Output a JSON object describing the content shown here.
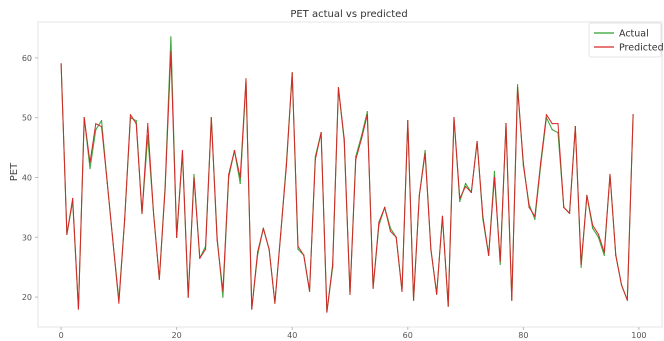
{
  "chart_data": {
    "type": "line",
    "title": "PET actual vs predicted",
    "xlabel": "",
    "ylabel": "PET",
    "xlim": [
      -4,
      104
    ],
    "ylim": [
      15,
      66
    ],
    "xticks": [
      0,
      20,
      40,
      60,
      80,
      100
    ],
    "yticks": [
      20,
      30,
      40,
      50,
      60
    ],
    "grid": false,
    "legend": "top-right",
    "x": [
      0,
      1,
      2,
      3,
      4,
      5,
      6,
      7,
      8,
      9,
      10,
      11,
      12,
      13,
      14,
      15,
      16,
      17,
      18,
      19,
      20,
      21,
      22,
      23,
      24,
      25,
      26,
      27,
      28,
      29,
      30,
      31,
      32,
      33,
      34,
      35,
      36,
      37,
      38,
      39,
      40,
      41,
      42,
      43,
      44,
      45,
      46,
      47,
      48,
      49,
      50,
      51,
      52,
      53,
      54,
      55,
      56,
      57,
      58,
      59,
      60,
      61,
      62,
      63,
      64,
      65,
      66,
      67,
      68,
      69,
      70,
      71,
      72,
      73,
      74,
      75,
      76,
      77,
      78,
      79,
      80,
      81,
      82,
      83,
      84,
      85,
      86,
      87,
      88,
      89,
      90,
      91,
      92,
      93,
      94,
      95,
      96,
      97,
      98,
      99
    ],
    "series": [
      {
        "name": "Actual",
        "color": "#2ca02c",
        "values": [
          59,
          30.5,
          36,
          18,
          50,
          41.5,
          48,
          49.5,
          39,
          29,
          19.5,
          33,
          50,
          49.5,
          34,
          47,
          34,
          23,
          38.5,
          63.5,
          30,
          44,
          20,
          40.5,
          26.5,
          28.5,
          50,
          30,
          20,
          40,
          44.5,
          39,
          56,
          18,
          27,
          31.5,
          28,
          19,
          30.5,
          42.5,
          57.5,
          28,
          27,
          21,
          43.5,
          47.5,
          17.5,
          25,
          55,
          46,
          20.5,
          43.5,
          47,
          51,
          21.5,
          32,
          35,
          31.5,
          30,
          21,
          49.5,
          19.5,
          37,
          44.5,
          28,
          20.5,
          33.5,
          18.5,
          50,
          36,
          39,
          37.5,
          46,
          33,
          27,
          41,
          25.5,
          49,
          19.5,
          55.5,
          42,
          35.5,
          33,
          42,
          50,
          48,
          47.5,
          35,
          34,
          48.5,
          25,
          37,
          31.5,
          30,
          27,
          40.5,
          27,
          22,
          19.5,
          50.5
        ]
      },
      {
        "name": "Predicted",
        "color": "#d62728",
        "values": [
          59,
          30.5,
          36.5,
          18,
          50,
          42.5,
          49,
          48.5,
          39,
          29,
          19,
          33,
          50.5,
          49,
          34,
          49,
          34,
          23,
          38,
          61,
          30,
          44.5,
          20,
          40,
          26.5,
          28,
          50,
          29.5,
          21,
          40.5,
          44.5,
          40,
          56.5,
          18,
          27.5,
          31.5,
          28,
          19,
          30.5,
          42,
          57.5,
          28.5,
          27,
          21,
          43,
          47.5,
          17.5,
          25.5,
          55,
          46.5,
          20.5,
          43,
          46.5,
          50.5,
          21.5,
          32.5,
          35,
          31,
          30,
          21,
          49.5,
          19.5,
          37,
          44,
          28,
          20.5,
          33.5,
          18.5,
          50,
          36.5,
          38.5,
          37.5,
          46,
          33.5,
          27,
          40,
          26,
          49,
          19.5,
          55,
          42.5,
          35,
          33.5,
          42.5,
          50.5,
          49,
          49,
          35,
          34,
          48.5,
          25.5,
          37,
          32,
          30.5,
          27.5,
          40.5,
          27,
          22,
          19.5,
          50.5
        ]
      }
    ]
  }
}
